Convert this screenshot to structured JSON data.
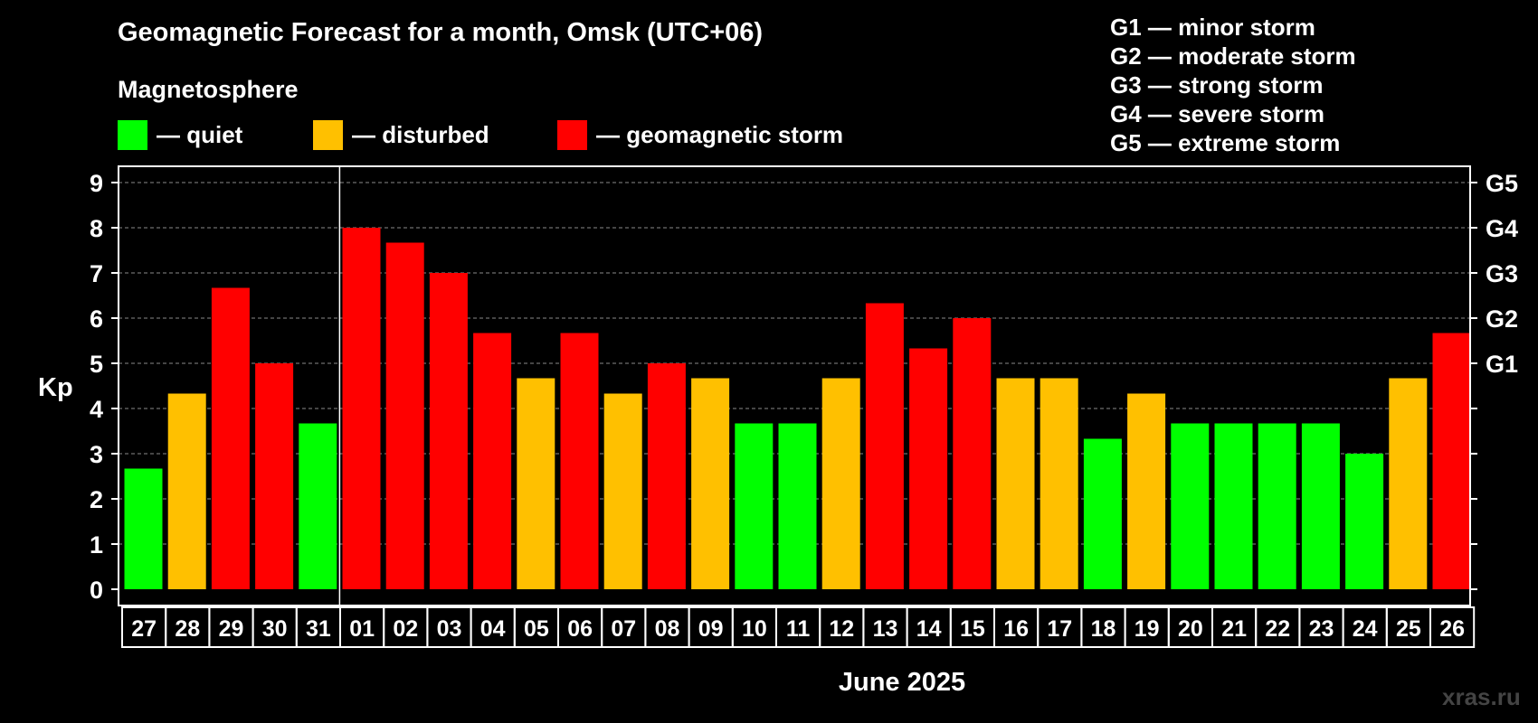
{
  "header": {
    "title": "Geomagnetic Forecast for a month, Omsk (UTC+06)",
    "subtitle": "Magnetosphere"
  },
  "legend": [
    {
      "label": "— quiet",
      "color": "#00ff00"
    },
    {
      "label": "— disturbed",
      "color": "#ffc000"
    },
    {
      "label": "— geomagnetic storm",
      "color": "#ff0000"
    }
  ],
  "storm_scale": [
    "G1 — minor storm",
    "G2 — moderate storm",
    "G3 — strong storm",
    "G4 — severe storm",
    "G5 — extreme storm"
  ],
  "watermark": "xras.ru",
  "chart_data": {
    "type": "bar",
    "ylabel": "Kp",
    "xlabel": "June 2025",
    "ylim": [
      0,
      9
    ],
    "yticks": [
      "0",
      "1",
      "2",
      "3",
      "4",
      "5",
      "6",
      "7",
      "8",
      "9"
    ],
    "right_axis_labels": [
      {
        "kp": 5,
        "label": "G1"
      },
      {
        "kp": 6,
        "label": "G2"
      },
      {
        "kp": 7,
        "label": "G3"
      },
      {
        "kp": 8,
        "label": "G4"
      },
      {
        "kp": 9,
        "label": "G5"
      }
    ],
    "grid": "dashed horizontal",
    "month_separator_after": "31",
    "categories": [
      "27",
      "28",
      "29",
      "30",
      "31",
      "01",
      "02",
      "03",
      "04",
      "05",
      "06",
      "07",
      "08",
      "09",
      "10",
      "11",
      "12",
      "13",
      "14",
      "15",
      "16",
      "17",
      "18",
      "19",
      "20",
      "21",
      "22",
      "23",
      "24",
      "25",
      "26"
    ],
    "values": [
      2.67,
      4.33,
      6.67,
      5.0,
      3.67,
      8.0,
      7.67,
      7.0,
      5.67,
      4.67,
      5.67,
      4.33,
      5.0,
      4.67,
      3.67,
      3.67,
      4.67,
      6.33,
      5.33,
      6.0,
      4.67,
      4.67,
      3.33,
      4.33,
      3.67,
      3.67,
      3.67,
      3.67,
      3.0,
      4.67,
      5.67
    ],
    "levels": [
      "quiet",
      "disturbed",
      "storm",
      "storm",
      "quiet",
      "storm",
      "storm",
      "storm",
      "storm",
      "disturbed",
      "storm",
      "disturbed",
      "storm",
      "disturbed",
      "quiet",
      "quiet",
      "disturbed",
      "storm",
      "storm",
      "storm",
      "disturbed",
      "disturbed",
      "quiet",
      "disturbed",
      "quiet",
      "quiet",
      "quiet",
      "quiet",
      "quiet",
      "disturbed",
      "storm"
    ],
    "level_colors": {
      "quiet": "#00ff00",
      "disturbed": "#ffc000",
      "storm": "#ff0000"
    }
  }
}
